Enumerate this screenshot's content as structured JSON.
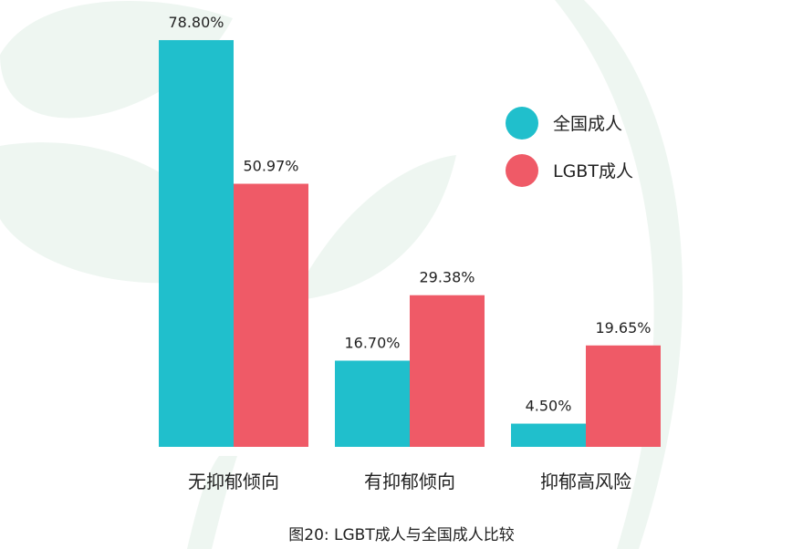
{
  "chart_data": {
    "type": "bar",
    "categories": [
      "无抑郁倾向",
      "有抑郁倾向",
      "抑郁高风险"
    ],
    "series": [
      {
        "name": "全国成人",
        "values": [
          78.8,
          16.7,
          4.5
        ],
        "labels": [
          "78.80%",
          "16.70%",
          "4.50%"
        ],
        "color": "#20bfcc"
      },
      {
        "name": "LGBT成人",
        "values": [
          50.97,
          29.38,
          19.65
        ],
        "labels": [
          "50.97%",
          "29.38%",
          "19.65%"
        ],
        "color": "#ef5a67"
      }
    ],
    "caption": "图20:  LGBT成人与全国成人比较",
    "ylim": [
      0,
      80
    ],
    "legend_position": "top-right",
    "grid": false,
    "decoration_color": "#eef6f1"
  }
}
